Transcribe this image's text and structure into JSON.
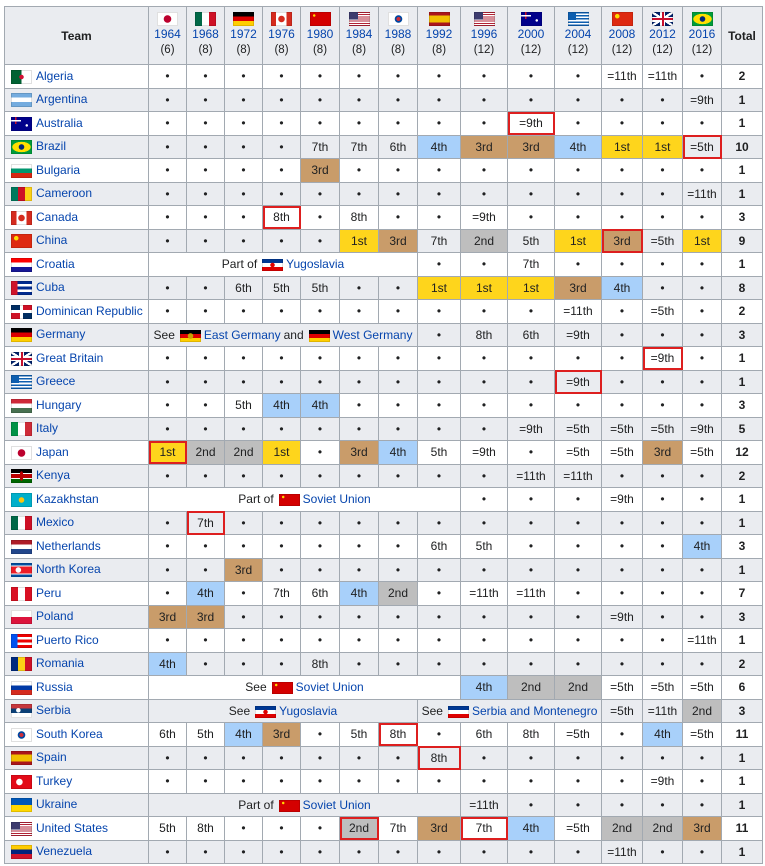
{
  "header": {
    "team_label": "Team",
    "total_label": "Total"
  },
  "years": [
    {
      "year": "1964",
      "teams": "(6)",
      "flag": "jp"
    },
    {
      "year": "1968",
      "teams": "(8)",
      "flag": "mx"
    },
    {
      "year": "1972",
      "teams": "(8)",
      "flag": "de"
    },
    {
      "year": "1976",
      "teams": "(8)",
      "flag": "ca"
    },
    {
      "year": "1980",
      "teams": "(8)",
      "flag": "su"
    },
    {
      "year": "1984",
      "teams": "(8)",
      "flag": "us"
    },
    {
      "year": "1988",
      "teams": "(8)",
      "flag": "kr"
    },
    {
      "year": "1992",
      "teams": "(8)",
      "flag": "es"
    },
    {
      "year": "1996",
      "teams": "(12)",
      "flag": "us"
    },
    {
      "year": "2000",
      "teams": "(12)",
      "flag": "au"
    },
    {
      "year": "2004",
      "teams": "(12)",
      "flag": "gr"
    },
    {
      "year": "2008",
      "teams": "(12)",
      "flag": "cn"
    },
    {
      "year": "2012",
      "teams": "(12)",
      "flag": "gb"
    },
    {
      "year": "2016",
      "teams": "(12)",
      "flag": "br"
    }
  ],
  "colors": {
    "1st": "#fed51c",
    "2nd": "#bebebe",
    "3rd": "#c99c6a",
    "4th": "#a8d0fa",
    "host_border": "#dd1f1f"
  },
  "rows": [
    {
      "team": "Algeria",
      "flag": "dz",
      "cells": [
        "•",
        "•",
        "•",
        "•",
        "•",
        "•",
        "•",
        "•",
        "•",
        "•",
        "•",
        "=11th",
        "=11th",
        "•"
      ],
      "total": "2"
    },
    {
      "team": "Argentina",
      "flag": "ar",
      "cells": [
        "•",
        "•",
        "•",
        "•",
        "•",
        "•",
        "•",
        "•",
        "•",
        "•",
        "•",
        "•",
        "•",
        "=9th"
      ],
      "total": "1"
    },
    {
      "team": "Australia",
      "flag": "au",
      "cells": [
        "•",
        "•",
        "•",
        "•",
        "•",
        "•",
        "•",
        "•",
        "•",
        "=9th",
        "•",
        "•",
        "•",
        "•"
      ],
      "total": "1",
      "host": [
        "2000"
      ]
    },
    {
      "team": "Brazil",
      "flag": "br",
      "cells": [
        "•",
        "•",
        "•",
        "•",
        "7th",
        "7th",
        "6th",
        "4th",
        "3rd",
        "3rd",
        "4th",
        "1st",
        "1st",
        "=5th"
      ],
      "total": "10",
      "host": [
        "2016"
      ]
    },
    {
      "team": "Bulgaria",
      "flag": "bg",
      "cells": [
        "•",
        "•",
        "•",
        "•",
        "3rd",
        "•",
        "•",
        "•",
        "•",
        "•",
        "•",
        "•",
        "•",
        "•"
      ],
      "total": "1"
    },
    {
      "team": "Cameroon",
      "flag": "cm",
      "cells": [
        "•",
        "•",
        "•",
        "•",
        "•",
        "•",
        "•",
        "•",
        "•",
        "•",
        "•",
        "•",
        "•",
        "=11th"
      ],
      "total": "1"
    },
    {
      "team": "Canada",
      "flag": "ca",
      "cells": [
        "•",
        "•",
        "•",
        "8th",
        "•",
        "8th",
        "•",
        "•",
        "=9th",
        "•",
        "•",
        "•",
        "•",
        "•"
      ],
      "total": "3",
      "host": [
        "1976"
      ]
    },
    {
      "team": "China",
      "flag": "cn",
      "cells": [
        "•",
        "•",
        "•",
        "•",
        "•",
        "1st",
        "3rd",
        "7th",
        "2nd",
        "5th",
        "1st",
        "3rd",
        "=5th",
        "1st"
      ],
      "total": "9",
      "host": [
        "2008"
      ]
    },
    {
      "team": "Croatia",
      "flag": "hr",
      "cells": [
        {
          "span": 7,
          "prefix": "Part of",
          "links": [
            {
              "flag": "yu",
              "label": "Yugoslavia"
            }
          ]
        },
        "•",
        "•",
        "7th",
        "•",
        "•",
        "•",
        "•"
      ],
      "total": "1"
    },
    {
      "team": "Cuba",
      "flag": "cu",
      "cells": [
        "•",
        "•",
        "6th",
        "5th",
        "5th",
        "•",
        "•",
        "1st",
        "1st",
        "1st",
        "3rd",
        "4th",
        "•",
        "•"
      ],
      "total": "8"
    },
    {
      "team": "Dominican Republic",
      "flag": "do",
      "cells": [
        "•",
        "•",
        "•",
        "•",
        "•",
        "•",
        "•",
        "•",
        "•",
        "•",
        "=11th",
        "•",
        "=5th",
        "•"
      ],
      "total": "2"
    },
    {
      "team": "Germany",
      "flag": "de",
      "cells": [
        {
          "span": 7,
          "prefix": "See",
          "links": [
            {
              "flag": "ddr",
              "label": "East Germany"
            }
          ],
          "joiner": "and",
          "links2": [
            {
              "flag": "de",
              "label": "West Germany"
            }
          ]
        },
        "•",
        "8th",
        "6th",
        "=9th",
        "•",
        "•",
        "•"
      ],
      "total": "3"
    },
    {
      "team": "Great Britain",
      "flag": "gb",
      "cells": [
        "•",
        "•",
        "•",
        "•",
        "•",
        "•",
        "•",
        "•",
        "•",
        "•",
        "•",
        "•",
        "=9th",
        "•"
      ],
      "total": "1",
      "host": [
        "2012"
      ]
    },
    {
      "team": "Greece",
      "flag": "gr",
      "cells": [
        "•",
        "•",
        "•",
        "•",
        "•",
        "•",
        "•",
        "•",
        "•",
        "•",
        "=9th",
        "•",
        "•",
        "•"
      ],
      "total": "1",
      "host": [
        "2004"
      ]
    },
    {
      "team": "Hungary",
      "flag": "hu",
      "cells": [
        "•",
        "•",
        "5th",
        "4th",
        "4th",
        "•",
        "•",
        "•",
        "•",
        "•",
        "•",
        "•",
        "•",
        "•"
      ],
      "total": "3"
    },
    {
      "team": "Italy",
      "flag": "it",
      "cells": [
        "•",
        "•",
        "•",
        "•",
        "•",
        "•",
        "•",
        "•",
        "•",
        "=9th",
        "=5th",
        "=5th",
        "=5th",
        "=9th"
      ],
      "total": "5"
    },
    {
      "team": "Japan",
      "flag": "jp",
      "cells": [
        "1st",
        "2nd",
        "2nd",
        "1st",
        "•",
        "3rd",
        "4th",
        "5th",
        "=9th",
        "•",
        "=5th",
        "=5th",
        "3rd",
        "=5th"
      ],
      "total": "12",
      "host": [
        "1964"
      ]
    },
    {
      "team": "Kenya",
      "flag": "ke",
      "cells": [
        "•",
        "•",
        "•",
        "•",
        "•",
        "•",
        "•",
        "•",
        "•",
        "=11th",
        "=11th",
        "•",
        "•",
        "•"
      ],
      "total": "2"
    },
    {
      "team": "Kazakhstan",
      "flag": "kz",
      "cells": [
        {
          "span": 8,
          "prefix": "Part of",
          "links": [
            {
              "flag": "su",
              "label": "Soviet Union"
            }
          ]
        },
        "•",
        "•",
        "•",
        "=9th",
        "•",
        "•"
      ],
      "total": "1"
    },
    {
      "team": "Mexico",
      "flag": "mx",
      "cells": [
        "•",
        "7th",
        "•",
        "•",
        "•",
        "•",
        "•",
        "•",
        "•",
        "•",
        "•",
        "•",
        "•",
        "•"
      ],
      "total": "1",
      "host": [
        "1968"
      ]
    },
    {
      "team": "Netherlands",
      "flag": "nl",
      "cells": [
        "•",
        "•",
        "•",
        "•",
        "•",
        "•",
        "•",
        "6th",
        "5th",
        "•",
        "•",
        "•",
        "•",
        "4th"
      ],
      "total": "3"
    },
    {
      "team": "North Korea",
      "flag": "kp",
      "cells": [
        "•",
        "•",
        "3rd",
        "•",
        "•",
        "•",
        "•",
        "•",
        "•",
        "•",
        "•",
        "•",
        "•",
        "•"
      ],
      "total": "1"
    },
    {
      "team": "Peru",
      "flag": "pe",
      "cells": [
        "•",
        "4th",
        "•",
        "7th",
        "6th",
        "4th",
        "2nd",
        "•",
        "=11th",
        "=11th",
        "•",
        "•",
        "•",
        "•"
      ],
      "total": "7"
    },
    {
      "team": "Poland",
      "flag": "pl",
      "cells": [
        "3rd",
        "3rd",
        "•",
        "•",
        "•",
        "•",
        "•",
        "•",
        "•",
        "•",
        "•",
        "=9th",
        "•",
        "•"
      ],
      "total": "3"
    },
    {
      "team": "Puerto Rico",
      "flag": "pr",
      "cells": [
        "•",
        "•",
        "•",
        "•",
        "•",
        "•",
        "•",
        "•",
        "•",
        "•",
        "•",
        "•",
        "•",
        "=11th"
      ],
      "total": "1"
    },
    {
      "team": "Romania",
      "flag": "ro",
      "cells": [
        "4th",
        "•",
        "•",
        "•",
        "8th",
        "•",
        "•",
        "•",
        "•",
        "•",
        "•",
        "•",
        "•",
        "•"
      ],
      "total": "2"
    },
    {
      "team": "Russia",
      "flag": "ru",
      "cells": [
        {
          "span": 8,
          "prefix": "See",
          "links": [
            {
              "flag": "su",
              "label": "Soviet Union"
            }
          ]
        },
        "4th",
        "2nd",
        "2nd",
        "=5th",
        "=5th",
        "=5th"
      ],
      "total": "6"
    },
    {
      "team": "Serbia",
      "flag": "rs",
      "cells": [
        {
          "span": 7,
          "prefix": "See",
          "links": [
            {
              "flag": "yu",
              "label": "Yugoslavia"
            }
          ]
        },
        {
          "span": 4,
          "prefix": "See",
          "links": [
            {
              "flag": "smn",
              "label": "Serbia and Montenegro"
            }
          ]
        },
        "=5th",
        "=11th",
        "2nd"
      ],
      "total": "3"
    },
    {
      "team": "South Korea",
      "flag": "kr",
      "cells": [
        "6th",
        "5th",
        "4th",
        "3rd",
        "•",
        "5th",
        "8th",
        "•",
        "6th",
        "8th",
        "=5th",
        "•",
        "4th",
        "=5th"
      ],
      "total": "11",
      "host": [
        "1988"
      ]
    },
    {
      "team": "Spain",
      "flag": "es",
      "cells": [
        "•",
        "•",
        "•",
        "•",
        "•",
        "•",
        "•",
        "8th",
        "•",
        "•",
        "•",
        "•",
        "•",
        "•"
      ],
      "total": "1",
      "host": [
        "1992"
      ]
    },
    {
      "team": "Turkey",
      "flag": "tr",
      "cells": [
        "•",
        "•",
        "•",
        "•",
        "•",
        "•",
        "•",
        "•",
        "•",
        "•",
        "•",
        "•",
        "=9th",
        "•"
      ],
      "total": "1"
    },
    {
      "team": "Ukraine",
      "flag": "ua",
      "cells": [
        {
          "span": 8,
          "prefix": "Part of",
          "links": [
            {
              "flag": "su",
              "label": "Soviet Union"
            }
          ]
        },
        "=11th",
        "•",
        "•",
        "•",
        "•",
        "•"
      ],
      "total": "1"
    },
    {
      "team": "United States",
      "flag": "us",
      "cells": [
        "5th",
        "8th",
        "•",
        "•",
        "•",
        "2nd",
        "7th",
        "3rd",
        "7th",
        "4th",
        "=5th",
        "2nd",
        "2nd",
        "3rd"
      ],
      "total": "11",
      "host": [
        "1984",
        "1996"
      ]
    },
    {
      "team": "Venezuela",
      "flag": "ve",
      "cells": [
        "•",
        "•",
        "•",
        "•",
        "•",
        "•",
        "•",
        "•",
        "•",
        "•",
        "•",
        "=11th",
        "•",
        "•"
      ],
      "total": "1"
    }
  ]
}
